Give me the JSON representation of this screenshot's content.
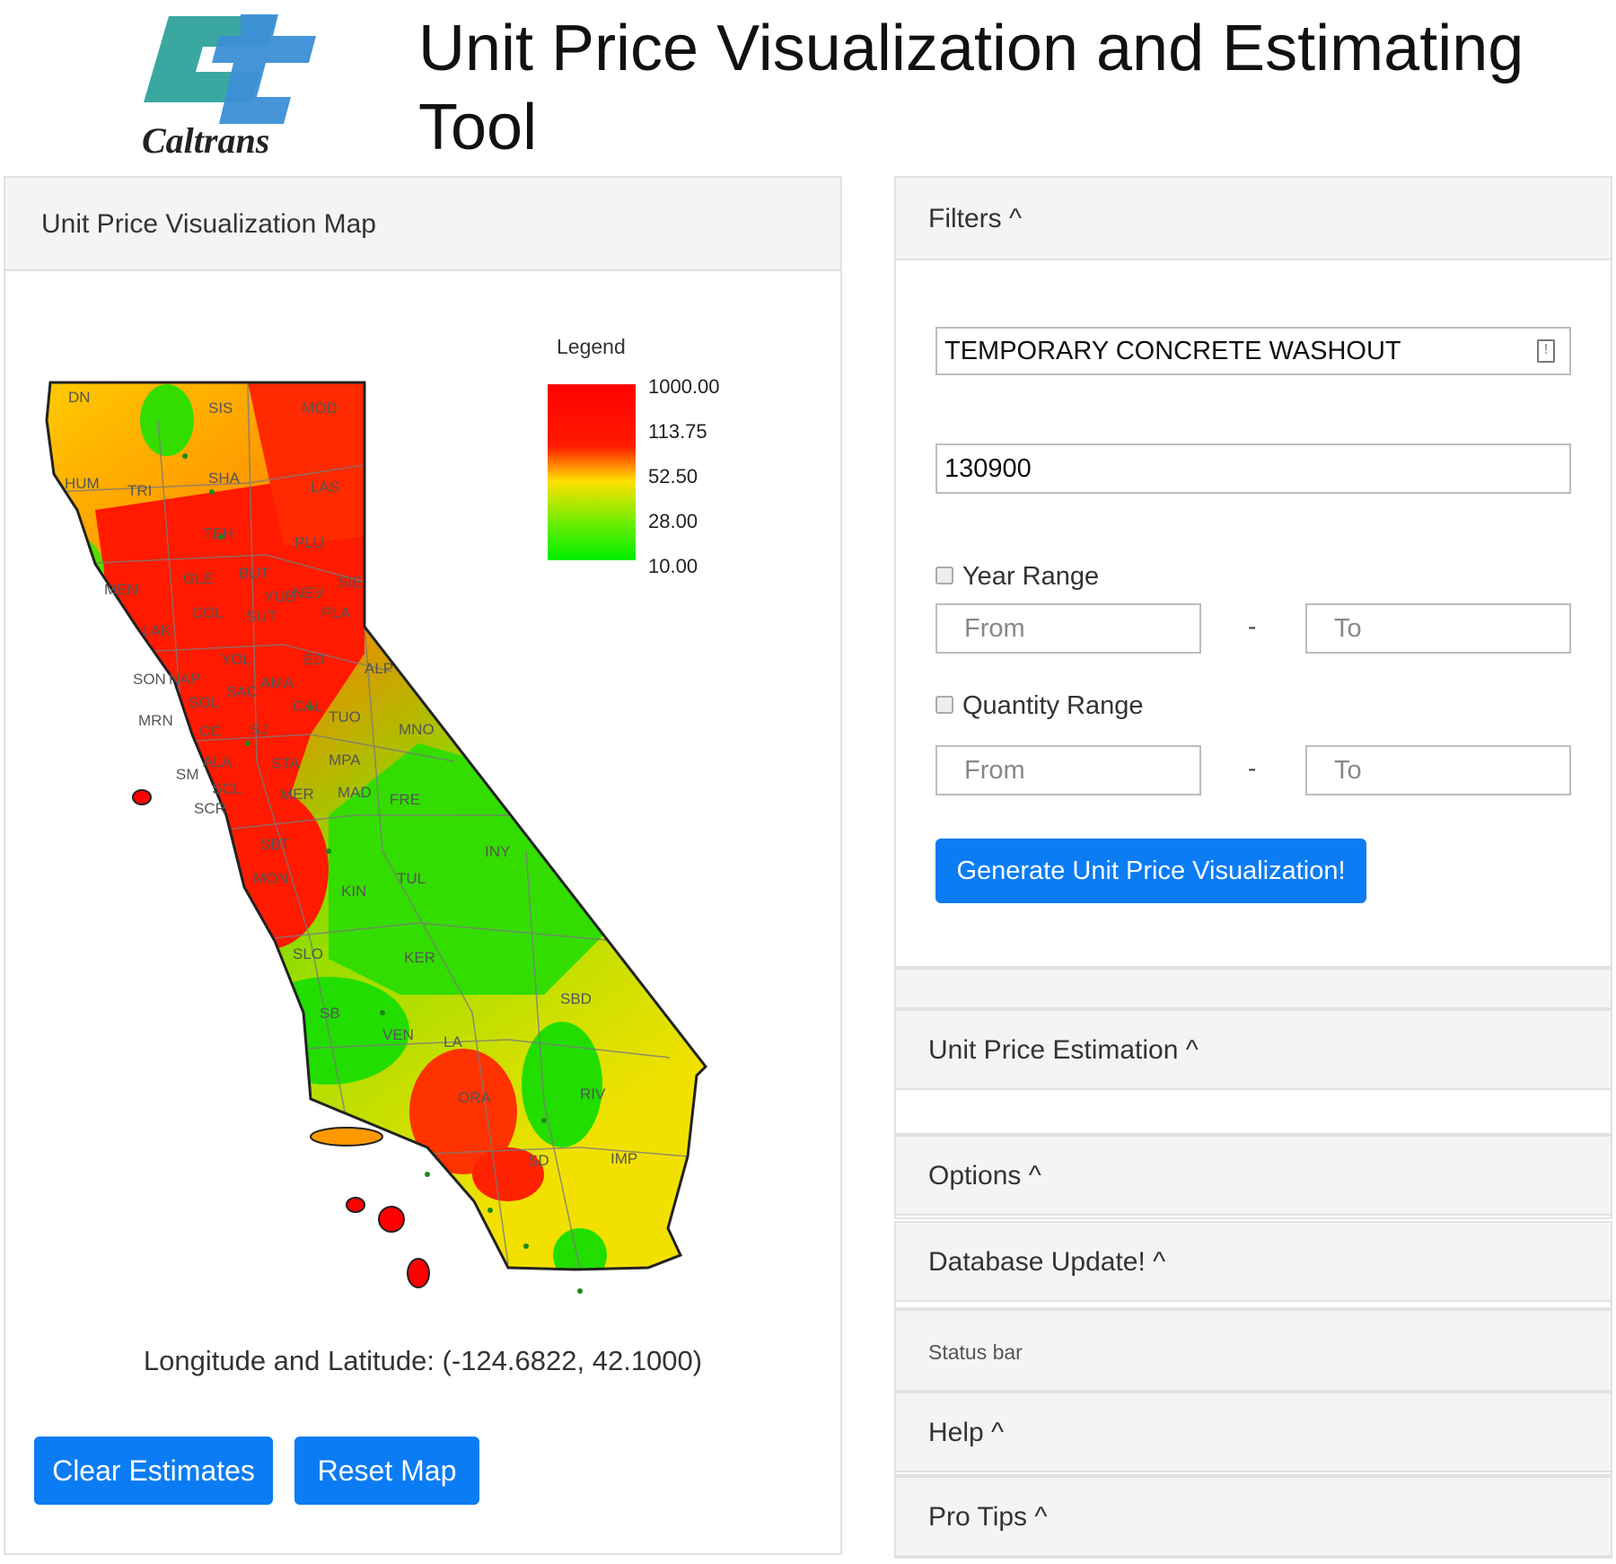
{
  "header": {
    "title": "Unit Price Visualization and Estimating Tool",
    "logo_text": "Caltrans"
  },
  "map_panel": {
    "title": "Unit Price Visualization Map",
    "coordinates": "Longitude and Latitude: (-124.6822, 42.1000)",
    "clear_button": "Clear Estimates",
    "reset_button": "Reset Map",
    "legend": {
      "title": "Legend",
      "ticks": [
        "1000.00",
        "113.75",
        "52.50",
        "28.00",
        "10.00"
      ],
      "colors": [
        "#ff0000",
        "#ffff00",
        "#00ff00"
      ]
    },
    "county_labels": [
      "DN",
      "SIS",
      "MOD",
      "HUM",
      "TRI",
      "SHA",
      "LAS",
      "TEH",
      "PLU",
      "MEN",
      "GLE",
      "BUT",
      "SIE",
      "COL",
      "SUT",
      "PLA",
      "LAK",
      "YUB",
      "NEV",
      "SON",
      "NAP",
      "YOL",
      "ED",
      "ALP",
      "SOL",
      "SAC",
      "AMA",
      "CAL",
      "TUO",
      "MNO",
      "MRN",
      "SJ",
      "CC",
      "ALA",
      "STA",
      "MPA",
      "SM",
      "SCL",
      "MER",
      "MAD",
      "FRE",
      "SCR",
      "SBT",
      "INY",
      "MON",
      "KIN",
      "TUL",
      "SLO",
      "KER",
      "SBD",
      "SB",
      "VEN",
      "LA",
      "ORA",
      "RIV",
      "SD",
      "IMP"
    ]
  },
  "filters": {
    "title": "Filters ^",
    "item_description": "TEMPORARY CONCRETE WASHOUT",
    "item_code": "130900",
    "year_range_label": "Year Range",
    "quantity_range_label": "Quantity Range",
    "from_placeholder": "From",
    "to_placeholder": "To",
    "dash": "-",
    "generate_button": "Generate Unit Price Visualization!"
  },
  "sections": {
    "estimation": "Unit Price Estimation ^",
    "options": "Options ^",
    "database_update": "Database Update! ^",
    "status_bar": "Status bar",
    "help": "Help ^",
    "pro_tips": "Pro Tips ^"
  }
}
